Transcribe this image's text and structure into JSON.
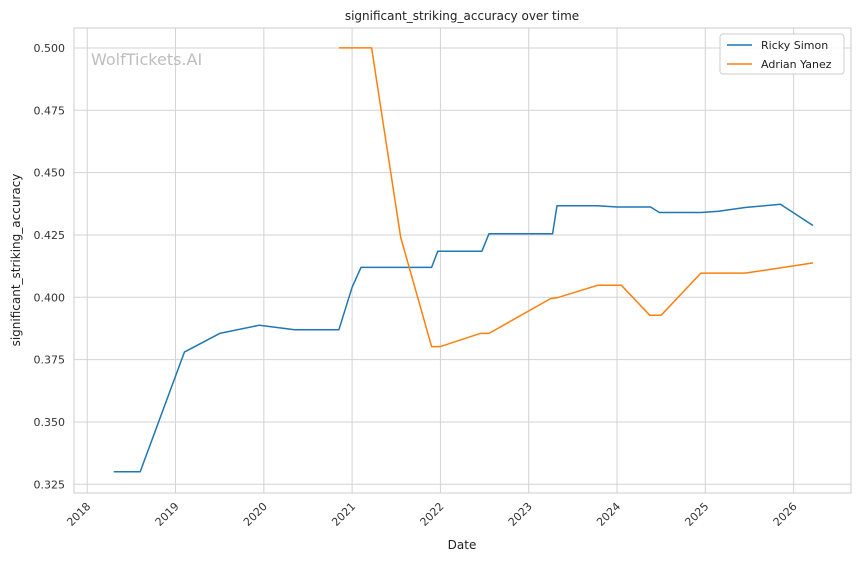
{
  "chart_data": {
    "type": "line",
    "title": "significant_striking_accuracy over time",
    "xlabel": "Date",
    "ylabel": "significant_striking_accuracy",
    "watermark": "WolfTickets.AI",
    "xlim": [
      2017.85,
      2026.65
    ],
    "ylim": [
      0.3215,
      0.508
    ],
    "x_ticks": [
      2018,
      2019,
      2020,
      2021,
      2022,
      2023,
      2024,
      2025,
      2026
    ],
    "y_ticks": [
      0.325,
      0.35,
      0.375,
      0.4,
      0.425,
      0.45,
      0.475,
      0.5
    ],
    "y_tick_labels": [
      "0.325",
      "0.350",
      "0.375",
      "0.400",
      "0.425",
      "0.450",
      "0.475",
      "0.500"
    ],
    "grid": true,
    "legend_position": "top-right",
    "series": [
      {
        "name": "Ricky Simon",
        "color": "#1f77b4",
        "points": [
          [
            2018.3,
            0.33
          ],
          [
            2018.6,
            0.33
          ],
          [
            2019.1,
            0.378
          ],
          [
            2019.5,
            0.3855
          ],
          [
            2019.95,
            0.3888
          ],
          [
            2020.35,
            0.387
          ],
          [
            2020.85,
            0.387
          ],
          [
            2021.0,
            0.404
          ],
          [
            2021.1,
            0.412
          ],
          [
            2021.9,
            0.412
          ],
          [
            2021.97,
            0.4185
          ],
          [
            2022.47,
            0.4185
          ],
          [
            2022.55,
            0.4255
          ],
          [
            2023.27,
            0.4255
          ],
          [
            2023.32,
            0.4367
          ],
          [
            2023.78,
            0.4367
          ],
          [
            2024.0,
            0.4362
          ],
          [
            2024.38,
            0.4362
          ],
          [
            2024.48,
            0.434
          ],
          [
            2024.95,
            0.434
          ],
          [
            2025.15,
            0.4345
          ],
          [
            2025.45,
            0.436
          ],
          [
            2025.85,
            0.4373
          ],
          [
            2026.22,
            0.4288
          ]
        ]
      },
      {
        "name": "Adrian Yanez",
        "color": "#ff7f0e",
        "points": [
          [
            2020.85,
            0.5
          ],
          [
            2021.22,
            0.5
          ],
          [
            2021.55,
            0.424
          ],
          [
            2021.9,
            0.3802
          ],
          [
            2022.0,
            0.3802
          ],
          [
            2022.45,
            0.3855
          ],
          [
            2022.55,
            0.3855
          ],
          [
            2023.25,
            0.3995
          ],
          [
            2023.32,
            0.3998
          ],
          [
            2023.78,
            0.4048
          ],
          [
            2024.05,
            0.4048
          ],
          [
            2024.37,
            0.3928
          ],
          [
            2024.5,
            0.3928
          ],
          [
            2024.95,
            0.4097
          ],
          [
            2025.45,
            0.4097
          ],
          [
            2025.85,
            0.4118
          ],
          [
            2026.22,
            0.4138
          ]
        ]
      }
    ]
  }
}
